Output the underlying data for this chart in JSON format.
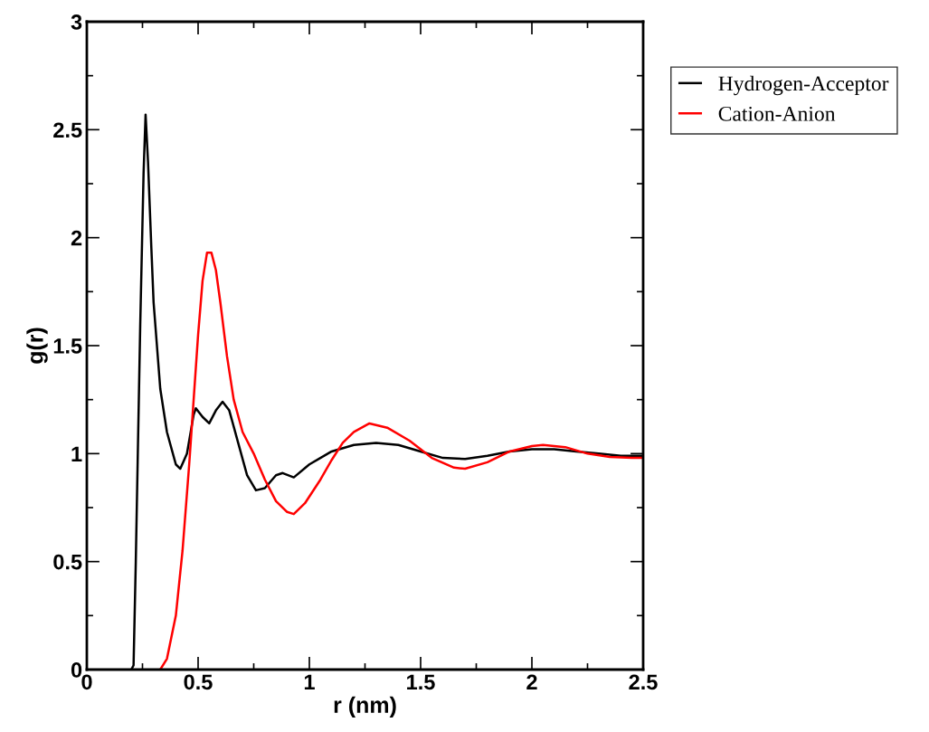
{
  "chart_data": {
    "type": "line",
    "xlabel": "r (nm)",
    "ylabel": "g(r)",
    "xlim": [
      0,
      2.5
    ],
    "xticks": [
      0,
      0.5,
      1,
      1.5,
      2,
      2.5
    ],
    "ylim": [
      0,
      3
    ],
    "yticks": [
      0,
      0.5,
      1,
      1.5,
      2,
      2.5,
      3
    ],
    "grid": false,
    "legend": "top right",
    "marker": "none",
    "line_style": "solid",
    "series": [
      {
        "name": "Hydrogen-Acceptor",
        "color": "#000000",
        "x": [
          0.2,
          0.21,
          0.22,
          0.24,
          0.255,
          0.264,
          0.275,
          0.29,
          0.3,
          0.33,
          0.36,
          0.4,
          0.42,
          0.45,
          0.48,
          0.49,
          0.52,
          0.55,
          0.58,
          0.61,
          0.64,
          0.68,
          0.72,
          0.76,
          0.8,
          0.85,
          0.88,
          0.93,
          1.0,
          1.1,
          1.2,
          1.3,
          1.4,
          1.5,
          1.6,
          1.7,
          1.8,
          1.9,
          2.0,
          2.1,
          2.2,
          2.3,
          2.4,
          2.5
        ],
        "values": [
          0,
          0.02,
          0.5,
          1.6,
          2.3,
          2.57,
          2.35,
          1.95,
          1.7,
          1.3,
          1.1,
          0.95,
          0.93,
          1.0,
          1.18,
          1.21,
          1.17,
          1.14,
          1.2,
          1.24,
          1.2,
          1.05,
          0.9,
          0.83,
          0.84,
          0.9,
          0.91,
          0.89,
          0.95,
          1.01,
          1.04,
          1.05,
          1.04,
          1.01,
          0.98,
          0.975,
          0.99,
          1.01,
          1.02,
          1.02,
          1.01,
          1.0,
          0.99,
          0.99
        ]
      },
      {
        "name": "Cation-Anion",
        "color": "#ff0000",
        "x": [
          0.33,
          0.36,
          0.4,
          0.43,
          0.46,
          0.48,
          0.5,
          0.52,
          0.54,
          0.56,
          0.58,
          0.6,
          0.63,
          0.66,
          0.7,
          0.75,
          0.8,
          0.85,
          0.9,
          0.93,
          0.98,
          1.05,
          1.1,
          1.15,
          1.2,
          1.27,
          1.35,
          1.45,
          1.55,
          1.65,
          1.7,
          1.8,
          1.9,
          2.0,
          2.05,
          2.15,
          2.25,
          2.35,
          2.45,
          2.5
        ],
        "values": [
          0,
          0.05,
          0.25,
          0.55,
          0.95,
          1.25,
          1.55,
          1.8,
          1.93,
          1.93,
          1.85,
          1.7,
          1.45,
          1.25,
          1.1,
          1.0,
          0.88,
          0.78,
          0.73,
          0.72,
          0.77,
          0.88,
          0.97,
          1.05,
          1.1,
          1.14,
          1.12,
          1.06,
          0.98,
          0.935,
          0.93,
          0.96,
          1.01,
          1.035,
          1.04,
          1.03,
          1.0,
          0.985,
          0.98,
          0.98
        ]
      }
    ]
  }
}
